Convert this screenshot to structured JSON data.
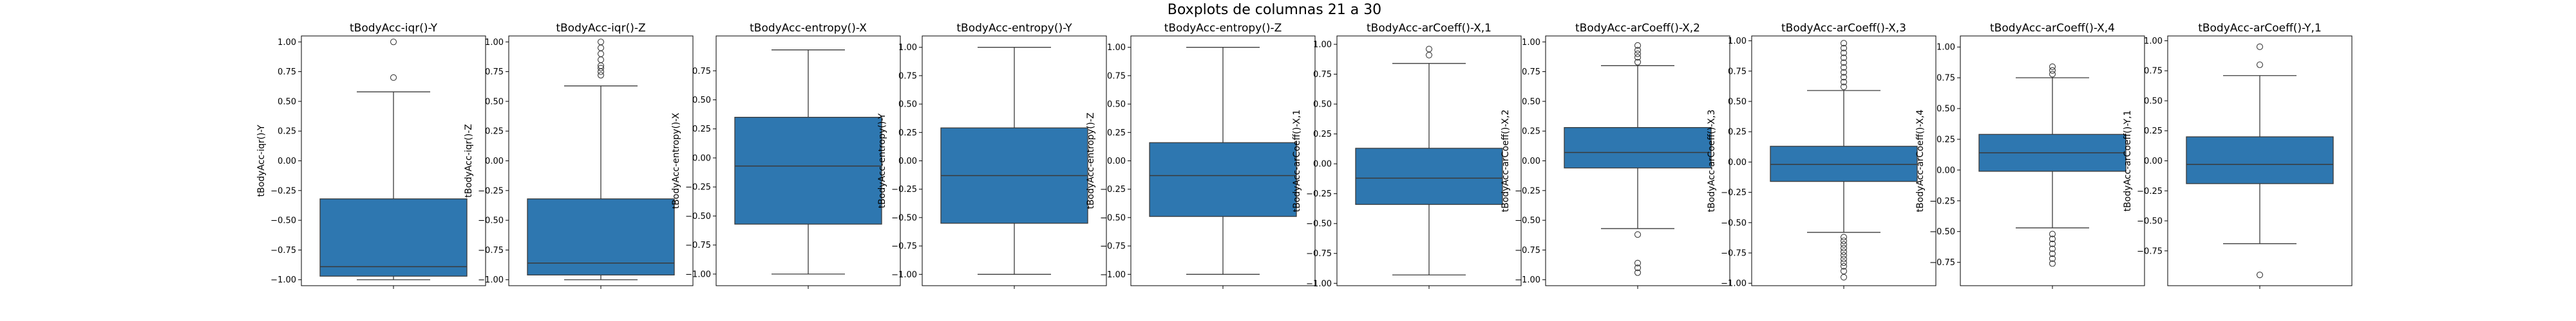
{
  "figure": {
    "suptitle": "Boxplots de columnas 21 a 30"
  },
  "colors": {
    "box_fill": "#2e77b0",
    "line": "#3a3a3a",
    "frame": "#000000"
  },
  "chart_data": [
    {
      "type": "boxplot",
      "title": "tBodyAcc-iqr()-Y",
      "ylabel": "tBodyAcc-iqr()-Y",
      "ylim": [
        -1.05,
        1.05
      ],
      "yticks": [
        -1.0,
        -0.75,
        -0.5,
        -0.25,
        0.0,
        0.25,
        0.5,
        0.75,
        1.0
      ],
      "ytick_labels": [
        "−1.00",
        "−0.75",
        "−0.50",
        "−0.25",
        "0.00",
        "0.25",
        "0.50",
        "0.75",
        "1.00"
      ],
      "q1": -0.97,
      "median": -0.89,
      "q3": -0.32,
      "whisker_low": -1.0,
      "whisker_high": 0.58,
      "outliers": [
        1.0,
        0.7
      ]
    },
    {
      "type": "boxplot",
      "title": "tBodyAcc-iqr()-Z",
      "ylabel": "tBodyAcc-iqr()-Z",
      "ylim": [
        -1.05,
        1.05
      ],
      "yticks": [
        -1.0,
        -0.75,
        -0.5,
        -0.25,
        0.0,
        0.25,
        0.5,
        0.75,
        1.0
      ],
      "ytick_labels": [
        "−1.00",
        "−0.75",
        "−0.50",
        "−0.25",
        "0.00",
        "0.25",
        "0.50",
        "0.75",
        "1.00"
      ],
      "q1": -0.96,
      "median": -0.86,
      "q3": -0.32,
      "whisker_low": -1.0,
      "whisker_high": 0.63,
      "outliers": [
        0.72,
        0.75,
        0.78,
        0.8,
        0.85,
        0.9,
        0.95,
        1.0
      ]
    },
    {
      "type": "boxplot",
      "title": "tBodyAcc-entropy()-X",
      "ylabel": "tBodyAcc-entropy()-X",
      "ylim": [
        -1.1,
        1.05
      ],
      "yticks": [
        -1.0,
        -0.75,
        -0.5,
        -0.25,
        0.0,
        0.25,
        0.5,
        0.75
      ],
      "ytick_labels": [
        "−1.00",
        "−0.75",
        "−0.50",
        "−0.25",
        "0.00",
        "0.25",
        "0.50",
        "0.75"
      ],
      "q1": -0.57,
      "median": -0.07,
      "q3": 0.35,
      "whisker_low": -1.0,
      "whisker_high": 0.93,
      "outliers": []
    },
    {
      "type": "boxplot",
      "title": "tBodyAcc-entropy()-Y",
      "ylabel": "tBodyAcc-entropy()-Y",
      "ylim": [
        -1.1,
        1.1
      ],
      "yticks": [
        -1.0,
        -0.75,
        -0.5,
        -0.25,
        0.0,
        0.25,
        0.5,
        0.75,
        1.0
      ],
      "ytick_labels": [
        "−1.00",
        "−0.75",
        "−0.50",
        "−0.25",
        "0.00",
        "0.25",
        "0.50",
        "0.75",
        "1.00"
      ],
      "q1": -0.55,
      "median": -0.13,
      "q3": 0.29,
      "whisker_low": -1.0,
      "whisker_high": 1.0,
      "outliers": []
    },
    {
      "type": "boxplot",
      "title": "tBodyAcc-entropy()-Z",
      "ylabel": "tBodyAcc-entropy()-Z",
      "ylim": [
        -1.1,
        1.1
      ],
      "yticks": [
        -1.0,
        -0.75,
        -0.5,
        -0.25,
        0.0,
        0.25,
        0.5,
        0.75,
        1.0
      ],
      "ytick_labels": [
        "−1.00",
        "−0.75",
        "−0.50",
        "−0.25",
        "0.00",
        "0.25",
        "0.50",
        "0.75",
        "1.00"
      ],
      "q1": -0.49,
      "median": -0.13,
      "q3": 0.16,
      "whisker_low": -1.0,
      "whisker_high": 1.0,
      "outliers": []
    },
    {
      "type": "boxplot",
      "title": "tBodyAcc-arCoeff()-X,1",
      "ylabel": "tBodyAcc-arCoeff()-X,1",
      "ylim": [
        -1.02,
        1.07
      ],
      "yticks": [
        -1.0,
        -0.75,
        -0.5,
        -0.25,
        0.0,
        0.25,
        0.5,
        0.75,
        1.0
      ],
      "ytick_labels": [
        "−1.00",
        "−0.75",
        "−0.50",
        "−0.25",
        "0.00",
        "0.25",
        "0.50",
        "0.75",
        "1.00"
      ],
      "q1": -0.34,
      "median": -0.12,
      "q3": 0.13,
      "whisker_low": -0.93,
      "whisker_high": 0.84,
      "outliers": [
        0.91,
        0.96
      ]
    },
    {
      "type": "boxplot",
      "title": "tBodyAcc-arCoeff()-X,2",
      "ylabel": "tBodyAcc-arCoeff()-X,2",
      "ylim": [
        -1.05,
        1.05
      ],
      "yticks": [
        -1.0,
        -0.75,
        -0.5,
        -0.25,
        0.0,
        0.25,
        0.5,
        0.75,
        1.0
      ],
      "ytick_labels": [
        "−1.00",
        "−0.75",
        "−0.50",
        "−0.25",
        "0.00",
        "0.25",
        "0.50",
        "0.75",
        "1.00"
      ],
      "q1": -0.06,
      "median": 0.07,
      "q3": 0.28,
      "whisker_low": -0.57,
      "whisker_high": 0.8,
      "outliers": [
        -0.62,
        -0.86,
        -0.9,
        -0.94,
        0.83,
        0.87,
        0.9,
        0.93,
        0.97
      ]
    },
    {
      "type": "boxplot",
      "title": "tBodyAcc-arCoeff()-X,3",
      "ylabel": "tBodyAcc-arCoeff()-X,3",
      "ylim": [
        -1.02,
        1.04
      ],
      "yticks": [
        -1.0,
        -0.75,
        -0.5,
        -0.25,
        0.0,
        0.25,
        0.5,
        0.75,
        1.0
      ],
      "ytick_labels": [
        "−1.00",
        "−0.75",
        "−0.50",
        "−0.25",
        "0.00",
        "0.25",
        "0.50",
        "0.75",
        "1.00"
      ],
      "q1": -0.16,
      "median": -0.02,
      "q3": 0.13,
      "whisker_low": -0.58,
      "whisker_high": 0.59,
      "outliers": [
        -0.62,
        -0.65,
        -0.68,
        -0.71,
        -0.74,
        -0.77,
        -0.8,
        -0.83,
        -0.86,
        -0.9,
        -0.95,
        0.62,
        0.66,
        0.7,
        0.74,
        0.78,
        0.82,
        0.86,
        0.9,
        0.94,
        0.98
      ]
    },
    {
      "type": "boxplot",
      "title": "tBodyAcc-arCoeff()-X,4",
      "ylabel": "tBodyAcc-arCoeff()-X,4",
      "ylim": [
        -0.94,
        1.09
      ],
      "yticks": [
        -0.75,
        -0.5,
        -0.25,
        0.0,
        0.25,
        0.5,
        0.75,
        1.0
      ],
      "ytick_labels": [
        "−0.75",
        "−0.50",
        "−0.25",
        "0.00",
        "0.25",
        "0.50",
        "0.75",
        "1.00"
      ],
      "q1": -0.01,
      "median": 0.14,
      "q3": 0.29,
      "whisker_low": -0.47,
      "whisker_high": 0.75,
      "outliers": [
        -0.52,
        -0.56,
        -0.6,
        -0.64,
        -0.68,
        -0.72,
        -0.76,
        0.78,
        0.81,
        0.84
      ]
    },
    {
      "type": "boxplot",
      "title": "tBodyAcc-arCoeff()-Y,1",
      "ylabel": "tBodyAcc-arCoeff()-Y,1",
      "ylim": [
        -1.04,
        1.04
      ],
      "yticks": [
        -0.75,
        -0.5,
        -0.25,
        0.0,
        0.25,
        0.5,
        0.75,
        1.0
      ],
      "ytick_labels": [
        "−0.75",
        "−0.50",
        "−0.25",
        "0.00",
        "0.25",
        "0.50",
        "0.75",
        "1.00"
      ],
      "q1": -0.19,
      "median": -0.03,
      "q3": 0.2,
      "whisker_low": -0.69,
      "whisker_high": 0.71,
      "outliers": [
        -0.95,
        0.8,
        0.95
      ]
    }
  ]
}
